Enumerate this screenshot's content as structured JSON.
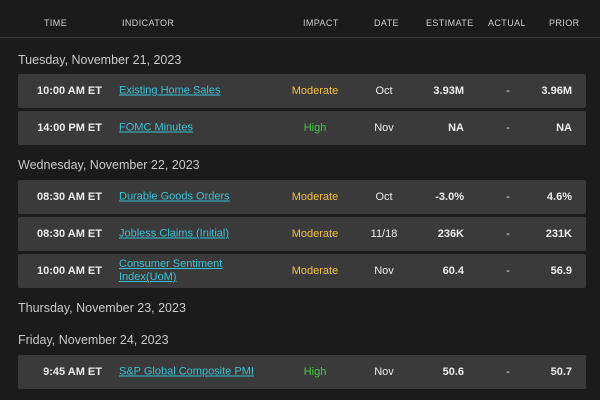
{
  "header": {
    "time": "TIME",
    "indicator": "INDICATOR",
    "impact": "IMPACT",
    "date": "DATE",
    "estimate": "ESTIMATE",
    "actual": "ACTUAL",
    "prior": "PRIOR"
  },
  "days": [
    {
      "label": "Tuesday, November 21, 2023",
      "events": [
        {
          "time": "10:00 AM ET",
          "indicator": "Existing Home Sales",
          "impact": "Moderate",
          "date": "Oct",
          "estimate": "3.93M",
          "actual": "-",
          "prior": "3.96M"
        },
        {
          "time": "14:00 PM ET",
          "indicator": "FOMC Minutes",
          "impact": "High",
          "date": "Nov",
          "estimate": "NA",
          "actual": "-",
          "prior": "NA"
        }
      ]
    },
    {
      "label": "Wednesday, November 22, 2023",
      "events": [
        {
          "time": "08:30 AM ET",
          "indicator": "Durable Goods Orders",
          "impact": "Moderate",
          "date": "Oct",
          "estimate": "-3.0%",
          "actual": "-",
          "prior": "4.6%"
        },
        {
          "time": "08:30 AM ET",
          "indicator": "Jobless Claims (Initial)",
          "impact": "Moderate",
          "date": "11/18",
          "estimate": "236K",
          "actual": "-",
          "prior": "231K"
        },
        {
          "time": "10:00 AM ET",
          "indicator": "Consumer Sentiment Index(UoM)",
          "impact": "Moderate",
          "date": "Nov",
          "estimate": "60.4",
          "actual": "-",
          "prior": "56.9"
        }
      ]
    },
    {
      "label": "Thursday, November 23, 2023",
      "events": []
    },
    {
      "label": "Friday, November 24, 2023",
      "events": [
        {
          "time": "9:45 AM ET",
          "indicator": "S&P Global Composite PMI",
          "impact": "High",
          "date": "Nov",
          "estimate": "50.6",
          "actual": "-",
          "prior": "50.7"
        }
      ]
    }
  ],
  "colors": {
    "background": "#1b1b1b",
    "row": "#3a3a3a",
    "link": "#39c2d7",
    "moderate": "#f3c13a",
    "high": "#3fcf3f"
  }
}
